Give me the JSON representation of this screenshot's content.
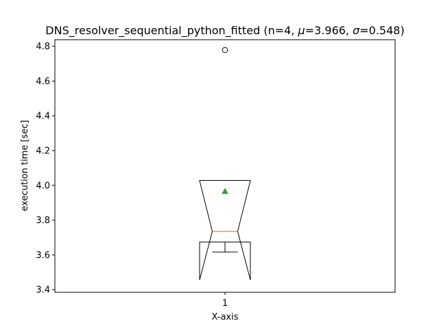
{
  "chart_data": {
    "type": "boxplot",
    "title": "DNS_resolver_sequential_python_fitted (n=4, μ=3.966, σ=0.548)",
    "title_parts": {
      "prefix": "DNS_resolver_sequential_python_fitted (n=4, ",
      "mu_symbol": "μ",
      "mu_value": "=3.966, ",
      "sigma_symbol": "σ",
      "sigma_value": "=0.548)"
    },
    "xlabel": "X-axis",
    "ylabel": "execution time [sec]",
    "categories": [
      "1"
    ],
    "ylim": [
      3.385,
      4.838
    ],
    "yticks": [
      3.4,
      3.6,
      3.8,
      4.0,
      4.2,
      4.4,
      4.6,
      4.8
    ],
    "ytick_labels": [
      "3.4",
      "3.6",
      "3.8",
      "4.0",
      "4.2",
      "4.4",
      "4.6",
      "4.8"
    ],
    "notched": true,
    "box": {
      "q1": 3.674,
      "median": 3.735,
      "q3": 4.029,
      "notch_low": 3.456,
      "notch_high": 4.027,
      "whisker_low": 3.617,
      "whisker_high": 4.029,
      "mean": 3.966
    },
    "fliers": [
      4.779
    ],
    "colors": {
      "median": "#ff7f0e",
      "mean": "#2ca02c",
      "box": "#000000"
    },
    "grid": false
  }
}
